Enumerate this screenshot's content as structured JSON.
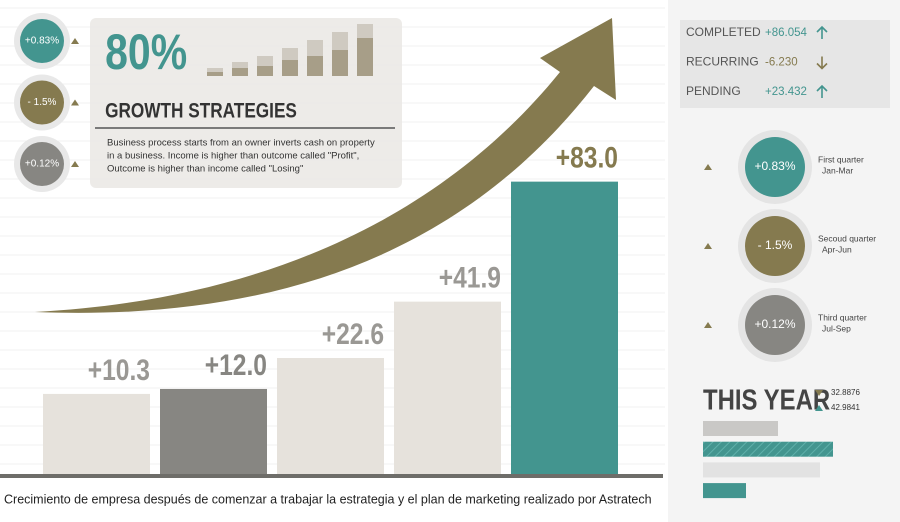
{
  "chart_data": {
    "type": "bar",
    "categories": [
      null,
      null,
      null,
      null,
      null
    ],
    "values": [
      10.3,
      12.0,
      22.6,
      41.9,
      83.0
    ],
    "value_labels": [
      "+10.3",
      "+12.0",
      "+22.6",
      "+41.9",
      "+83.0"
    ],
    "colors": [
      "#e6e2dc",
      "#878682",
      "#e6e2dc",
      "#e6e2dc",
      "#43958f"
    ],
    "label_colors": [
      "#9a9894",
      "#878682",
      "#9a9894",
      "#9a9894",
      "#857a4f"
    ]
  },
  "caption": "Crecimiento de empresa después de comenzar a trabajar la estrategia y el plan de marketing realizado por Astratech",
  "left_badges": [
    "+0.83%",
    "- 1.5%",
    "+0.12%"
  ],
  "headline": {
    "percent": "80%",
    "title": "GROWTH STRATEGIES",
    "text": [
      "Business process starts from an owner inverts cash on property",
      "in a business. Income is higher than outcome called \"Profit\",",
      "Outcome is higher than income called \"Losing\""
    ]
  },
  "stats": [
    {
      "label": "COMPLETED",
      "value": "+86.054"
    },
    {
      "label": "RECURRING",
      "value": "-6.230"
    },
    {
      "label": "PENDING",
      "value": "+23.432"
    }
  ],
  "quarters": [
    {
      "badge": "+0.83%",
      "name": "First quarter",
      "period": "Jan-Mar"
    },
    {
      "badge": "- 1.5%",
      "name": "Secoud quarter",
      "period": "Apr-Jun"
    },
    {
      "badge": "+0.12%",
      "name": "Third quarter",
      "period": "Jul-Sep"
    }
  ],
  "this_year": {
    "title": "THIS YEAR",
    "legend": [
      "32.8876",
      "42.9841"
    ]
  }
}
